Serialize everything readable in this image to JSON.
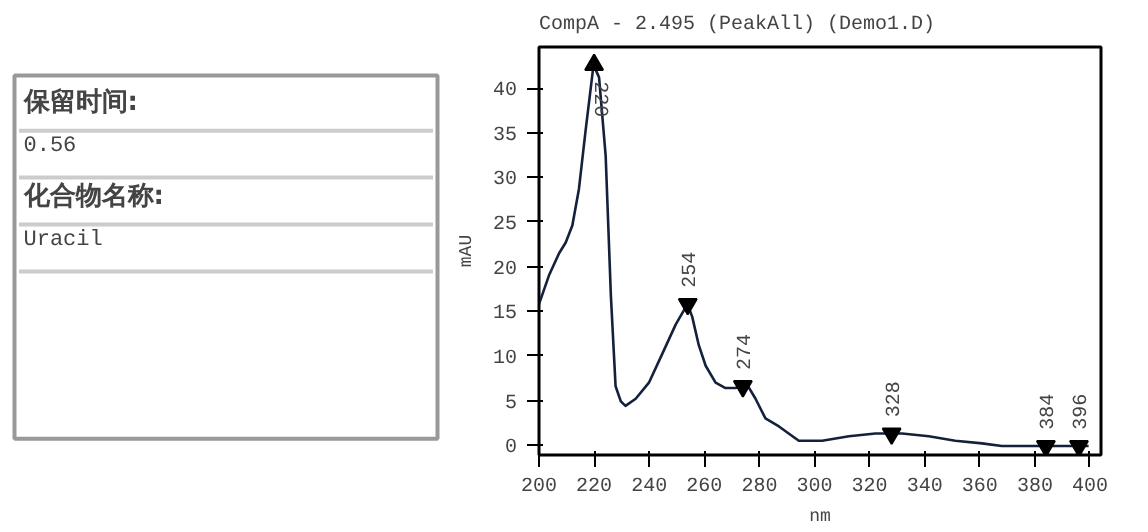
{
  "chart_data": [
    {
      "type": "other",
      "annotations": [
        "保留时间:",
        "0.56",
        "化合物名称:",
        "Uracil"
      ]
    },
    {
      "type": "line",
      "title": "CompA - 2.495 (PeakAll) (Demo1.D)",
      "xlabel": "nm",
      "ylabel": "mAU",
      "x": [
        200,
        203.6,
        207.3,
        209.7,
        212.1,
        214.5,
        216.9,
        219.8,
        221.8,
        224.2,
        226.1,
        227.8,
        229.7,
        231.4,
        235.1,
        239.9,
        244.7,
        249.6,
        253.9,
        255.6,
        258,
        260.5,
        264.1,
        267.7,
        271.3,
        275.7,
        278.6,
        282.2,
        287.1,
        294.3,
        302.8,
        312.5,
        322.1,
        331.8,
        341.5,
        351.1,
        360.8,
        368,
        399.5
      ],
      "series": [
        {
          "color": "#14213d",
          "values": [
            15.8,
            19.0,
            21.5,
            22.7,
            24.6,
            28.7,
            35.2,
            42.6,
            41.2,
            32.4,
            16.7,
            6.6,
            4.9,
            4.4,
            5.2,
            7.0,
            10.2,
            13.5,
            15.8,
            14.4,
            11.2,
            8.9,
            7.0,
            6.4,
            6.4,
            6.7,
            5.2,
            3.0,
            2.1,
            0.5,
            0.5,
            1.0,
            1.3,
            1.3,
            1.0,
            0.5,
            0.2,
            -0.1,
            -0.1
          ]
        },
        {
          "type": "scatter",
          "color": "#000000",
          "marker": "triangle",
          "x": [
            220,
            254,
            274,
            328,
            384,
            396
          ],
          "values": [
            42.6,
            15.8,
            6.6,
            1.3,
            -0.1,
            -0.1
          ]
        }
      ],
      "annotations": [
        {
          "text": "220",
          "x": 220,
          "y": 42.6
        },
        {
          "text": "254",
          "x": 254,
          "y": 15.8
        },
        {
          "text": "274",
          "x": 274,
          "y": 6.6
        },
        {
          "text": "328",
          "x": 328,
          "y": 1.3
        },
        {
          "text": "384",
          "x": 384,
          "y": -0.1
        },
        {
          "text": "396",
          "x": 396,
          "y": -0.1
        }
      ],
      "xlim": [
        200,
        404
      ],
      "ylim": [
        -1.1,
        44.6
      ],
      "xticks": [
        200,
        220,
        240,
        260,
        280,
        300,
        320,
        340,
        360,
        380,
        400
      ],
      "yticks": [
        0,
        5,
        10,
        15,
        20,
        25,
        30,
        35,
        40
      ],
      "grid": false,
      "line_style": "solid"
    }
  ]
}
